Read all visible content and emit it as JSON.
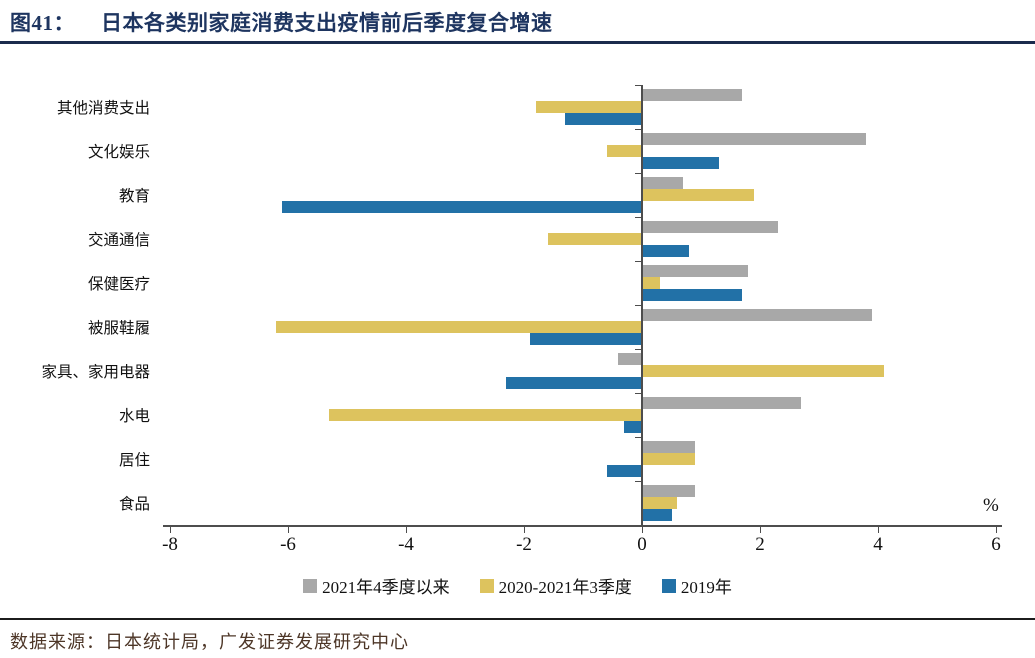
{
  "header": {
    "tag": "图41：",
    "title": "日本各类别家庭消费支出疫情前后季度复合增速"
  },
  "chart_data": {
    "type": "bar",
    "orientation": "horizontal",
    "title": "日本各类别家庭消费支出疫情前后季度复合增速",
    "categories": [
      "其他消费支出",
      "文化娱乐",
      "教育",
      "交通通信",
      "保健医疗",
      "被服鞋履",
      "家具、家用电器",
      "水电",
      "居住",
      "食品"
    ],
    "series": [
      {
        "name": "2021年4季度以来",
        "color": "#a8a8a8",
        "values": [
          1.7,
          3.8,
          0.7,
          2.3,
          1.8,
          3.9,
          -0.4,
          2.7,
          0.9,
          0.9
        ]
      },
      {
        "name": "2020-2021年3季度",
        "color": "#ddc35e",
        "values": [
          -1.8,
          -0.6,
          1.9,
          -1.6,
          0.3,
          -6.2,
          4.1,
          -5.3,
          0.9,
          0.6
        ]
      },
      {
        "name": "2019年",
        "color": "#2271a7",
        "values": [
          -1.3,
          1.3,
          -6.1,
          0.8,
          1.7,
          -1.9,
          -2.3,
          -0.3,
          -0.6,
          0.5
        ]
      }
    ],
    "xlim": [
      -8,
      6
    ],
    "xticks": [
      -8,
      -6,
      -4,
      -2,
      0,
      2,
      4,
      6
    ],
    "unit_label": "%",
    "grid": false,
    "legend_position": "bottom"
  },
  "footer": {
    "source": "数据来源：日本统计局，广发证券发展研究中心"
  }
}
